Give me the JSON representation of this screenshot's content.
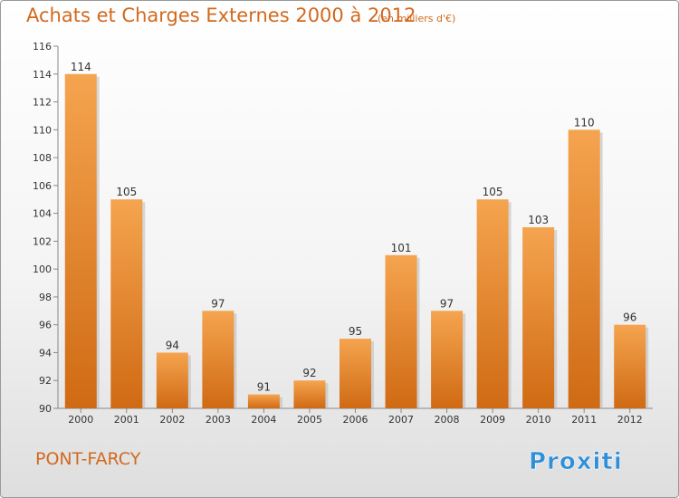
{
  "header": {
    "title": "Achats et Charges Externes 2000 à 2012",
    "unit": "(en milliers d'€)"
  },
  "footer": {
    "place": "PONT-FARCY",
    "logo_text": "Proxiti"
  },
  "colors": {
    "bar_top": "#f5a44f",
    "bar_bottom": "#d06a14",
    "accent_text": "#d2691e"
  },
  "chart_data": {
    "type": "bar",
    "categories": [
      "2000",
      "2001",
      "2002",
      "2003",
      "2004",
      "2005",
      "2006",
      "2007",
      "2008",
      "2009",
      "2010",
      "2011",
      "2012"
    ],
    "values": [
      114,
      105,
      94,
      97,
      91,
      92,
      95,
      101,
      97,
      105,
      103,
      110,
      96
    ],
    "title": "Achats et Charges Externes 2000 à 2012",
    "ylim": [
      90,
      116
    ],
    "yticks": [
      90,
      92,
      94,
      96,
      98,
      100,
      102,
      104,
      106,
      108,
      110,
      112,
      114,
      116
    ],
    "grid": false
  }
}
